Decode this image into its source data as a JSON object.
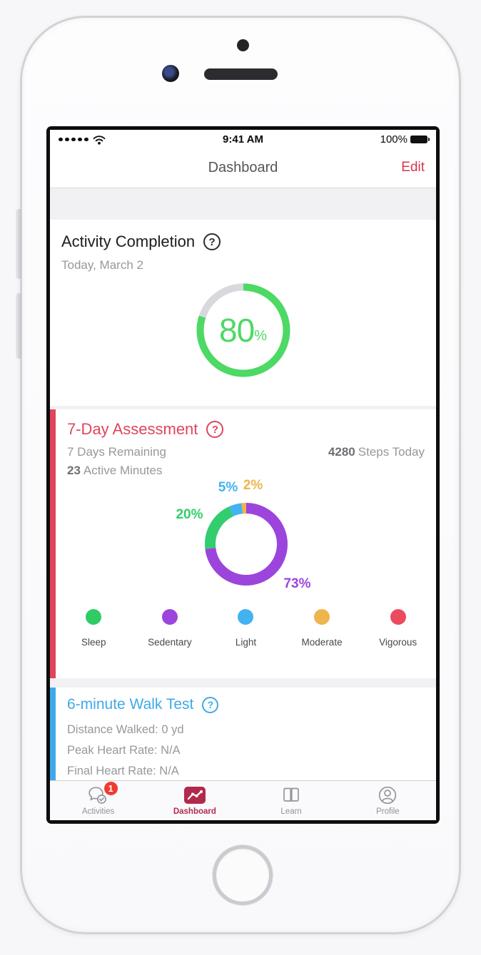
{
  "ui": {
    "help_glyph": "?"
  },
  "colors": {
    "red_accent": "#E0455C",
    "blue_accent": "#3FA9E8",
    "green_ring": "#4CD964",
    "ring_track": "#d8d8dd",
    "tab_active": "#B12A4C",
    "badge_red": "#F03B30",
    "edit_red": "#D6374F"
  },
  "status_bar": {
    "time": "9:41 AM",
    "battery_percent": "100%"
  },
  "nav_bar": {
    "title": "Dashboard",
    "edit_label": "Edit"
  },
  "activity_card": {
    "title": "Activity Completion",
    "date": "Today, March 2",
    "percent_value": "80",
    "percent_sign": "%",
    "ring": {
      "percent": 80,
      "color": "#4CD964",
      "track": "#d8d8dd"
    }
  },
  "assessment_card": {
    "title": "7-Day Assessment",
    "days_remaining": "7 Days Remaining",
    "steps_value": "4280",
    "steps_label": "Steps Today",
    "active_value": "23",
    "active_label": "Active Minutes",
    "chart": {
      "type": "donut",
      "title": "7-Day Assessment activity breakdown",
      "segments": [
        {
          "name": "Sedentary",
          "value": 73,
          "display": "73%",
          "color": "#9B45DC"
        },
        {
          "name": "Sleep",
          "value": 20,
          "display": "20%",
          "color": "#32CD6E"
        },
        {
          "name": "Light",
          "value": 5,
          "display": "5%",
          "color": "#42B2F1"
        },
        {
          "name": "Moderate",
          "value": 2,
          "display": "2%",
          "color": "#EEB44D"
        }
      ]
    },
    "legend": [
      {
        "label": "Sleep",
        "color": "#2FCC66"
      },
      {
        "label": "Sedentary",
        "color": "#9B45DC"
      },
      {
        "label": "Light",
        "color": "#42B2F1"
      },
      {
        "label": "Moderate",
        "color": "#EEB44D"
      },
      {
        "label": "Vigorous",
        "color": "#EC4A5F"
      }
    ]
  },
  "walk_card": {
    "title": "6-minute Walk Test",
    "rows": [
      "Distance Walked: 0 yd",
      "Peak Heart Rate: N/A",
      "Final Heart Rate: N/A"
    ]
  },
  "tab_bar": {
    "items": [
      {
        "label": "Activities",
        "badge": "1",
        "active": false
      },
      {
        "label": "Dashboard",
        "active": true
      },
      {
        "label": "Learn",
        "active": false
      },
      {
        "label": "Profile",
        "active": false
      }
    ]
  }
}
